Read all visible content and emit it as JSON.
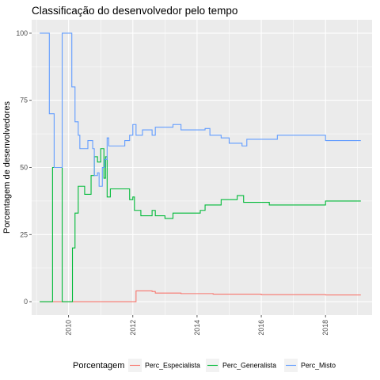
{
  "chart_data": {
    "type": "line",
    "step": true,
    "title": "Classificação do desenvolvedor pelo tempo",
    "xlabel": "",
    "ylabel": "Porcentagem de desenvolvedores",
    "x_ticks": [
      {
        "value": 2010.0,
        "label": "2010"
      },
      {
        "value": 2012.0,
        "label": "2012"
      },
      {
        "value": 2014.0,
        "label": "2014"
      },
      {
        "value": 2016.0,
        "label": "2016"
      },
      {
        "value": 2018.0,
        "label": "2018"
      }
    ],
    "y_ticks": [
      {
        "value": 0,
        "label": "0"
      },
      {
        "value": 25,
        "label": "25"
      },
      {
        "value": 50,
        "label": "50"
      },
      {
        "value": 75,
        "label": "75"
      },
      {
        "value": 100,
        "label": "100"
      }
    ],
    "xlim": [
      2008.85,
      2019.45
    ],
    "ylim": [
      -5,
      105
    ],
    "grid": true,
    "legend": {
      "title": "Porcentagem",
      "position": "bottom"
    },
    "series": [
      {
        "name": "Perc_Especialista",
        "color": "#F8766D",
        "points": [
          [
            2009.1,
            0
          ],
          [
            2012.05,
            0
          ],
          [
            2012.1,
            4
          ],
          [
            2012.6,
            3.8
          ],
          [
            2012.7,
            3.2
          ],
          [
            2013.5,
            3
          ],
          [
            2014.5,
            2.8
          ],
          [
            2016,
            2.6
          ],
          [
            2018,
            2.5
          ],
          [
            2019.1,
            2.5
          ]
        ]
      },
      {
        "name": "Perc_Generalista",
        "color": "#00BA38",
        "points": [
          [
            2009.1,
            0
          ],
          [
            2009.3,
            0
          ],
          [
            2009.5,
            50
          ],
          [
            2009.75,
            50
          ],
          [
            2009.8,
            0
          ],
          [
            2010.1,
            0
          ],
          [
            2010.12,
            20
          ],
          [
            2010.2,
            33
          ],
          [
            2010.3,
            43
          ],
          [
            2010.5,
            40
          ],
          [
            2010.7,
            47
          ],
          [
            2010.8,
            54
          ],
          [
            2010.9,
            52
          ],
          [
            2011.0,
            57
          ],
          [
            2011.1,
            46
          ],
          [
            2011.15,
            54
          ],
          [
            2011.2,
            39
          ],
          [
            2011.3,
            42
          ],
          [
            2011.9,
            38
          ],
          [
            2012.0,
            39
          ],
          [
            2012.05,
            34
          ],
          [
            2012.25,
            32
          ],
          [
            2012.6,
            34
          ],
          [
            2012.7,
            32
          ],
          [
            2013.0,
            31
          ],
          [
            2013.25,
            33
          ],
          [
            2014.0,
            33
          ],
          [
            2014.1,
            34
          ],
          [
            2014.25,
            36
          ],
          [
            2014.75,
            38
          ],
          [
            2015.0,
            38
          ],
          [
            2015.25,
            39.5
          ],
          [
            2015.45,
            37
          ],
          [
            2016.25,
            36
          ],
          [
            2017.75,
            36
          ],
          [
            2018.0,
            37.5
          ],
          [
            2019.1,
            37.5
          ]
        ]
      },
      {
        "name": "Perc_Misto",
        "color": "#619CFF",
        "points": [
          [
            2009.1,
            100
          ],
          [
            2009.2,
            100
          ],
          [
            2009.4,
            70
          ],
          [
            2009.55,
            50
          ],
          [
            2009.75,
            50
          ],
          [
            2009.8,
            100
          ],
          [
            2010.05,
            100
          ],
          [
            2010.1,
            80
          ],
          [
            2010.2,
            67
          ],
          [
            2010.3,
            62
          ],
          [
            2010.35,
            57
          ],
          [
            2010.5,
            57
          ],
          [
            2010.6,
            60
          ],
          [
            2010.75,
            57
          ],
          [
            2010.8,
            47
          ],
          [
            2010.9,
            48
          ],
          [
            2010.95,
            43
          ],
          [
            2011.05,
            50
          ],
          [
            2011.12,
            53
          ],
          [
            2011.2,
            61
          ],
          [
            2011.25,
            58
          ],
          [
            2011.75,
            60
          ],
          [
            2011.9,
            62
          ],
          [
            2012.0,
            66
          ],
          [
            2012.1,
            62
          ],
          [
            2012.3,
            64
          ],
          [
            2012.6,
            62
          ],
          [
            2012.7,
            65
          ],
          [
            2013.0,
            65
          ],
          [
            2013.25,
            66
          ],
          [
            2013.5,
            64
          ],
          [
            2014.0,
            64
          ],
          [
            2014.25,
            64.5
          ],
          [
            2014.4,
            62
          ],
          [
            2014.75,
            61
          ],
          [
            2015.0,
            59
          ],
          [
            2015.4,
            58
          ],
          [
            2015.55,
            60.5
          ],
          [
            2016.25,
            60.5
          ],
          [
            2016.5,
            62
          ],
          [
            2017.75,
            62
          ],
          [
            2018.0,
            60
          ],
          [
            2019.1,
            60
          ]
        ]
      }
    ]
  }
}
